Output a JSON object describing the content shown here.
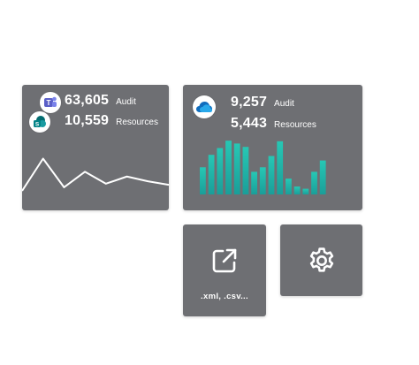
{
  "cards": {
    "teams": {
      "icons": [
        "teams-icon",
        "sharepoint-icon"
      ],
      "audit_value": "63,605",
      "audit_label": "Audit",
      "resources_value": "10,559",
      "resources_label": "Resources"
    },
    "onedrive": {
      "icon": "onedrive-icon",
      "audit_value": "9,257",
      "audit_label": "Audit",
      "resources_value": "5,443",
      "resources_label": "Resources"
    }
  },
  "tiles": {
    "export": {
      "icon": "external-link-icon",
      "caption": ".xml, .csv..."
    },
    "settings": {
      "icon": "gear-icon"
    }
  },
  "colors": {
    "card_bg": "#6e6f73",
    "sparkline": "#ffffff",
    "bar_gradient_top": "#27c7b4",
    "bar_gradient_bottom": "#1a9e99",
    "teams_purple": "#5b5fc7",
    "onedrive_blue": "#0f6cbd"
  },
  "chart_data": [
    {
      "type": "line",
      "x": [
        0,
        1,
        2,
        3,
        4,
        5,
        6,
        7
      ],
      "values": [
        6,
        60,
        12,
        38,
        18,
        30,
        22,
        16
      ],
      "ylim": [
        0,
        80
      ]
    },
    {
      "type": "bar",
      "categories": [
        "1",
        "2",
        "3",
        "4",
        "5",
        "6",
        "7",
        "8",
        "9",
        "10",
        "11",
        "12",
        "13",
        "14",
        "15",
        "16",
        "17",
        "18"
      ],
      "values": [
        48,
        70,
        82,
        95,
        90,
        84,
        40,
        48,
        68,
        94,
        28,
        14,
        10,
        40,
        60,
        0,
        0,
        0
      ],
      "ylim": [
        0,
        100
      ]
    }
  ]
}
